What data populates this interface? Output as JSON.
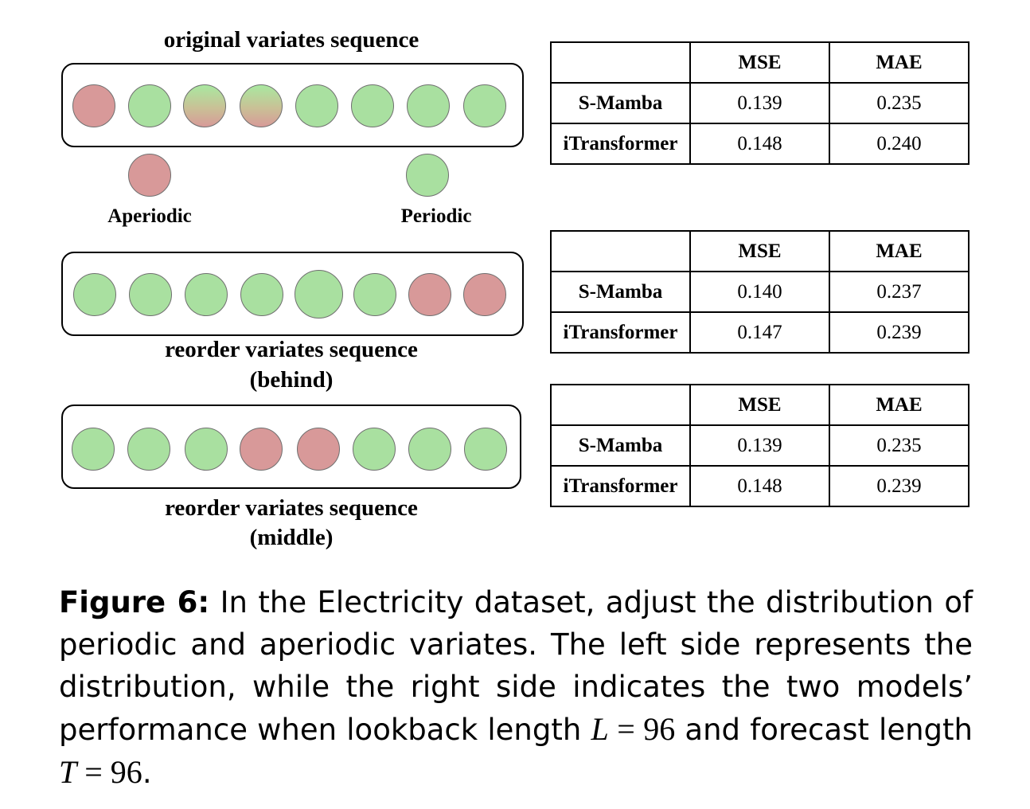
{
  "diagram": {
    "original_title": "original variates sequence",
    "aperiodic_label": "Aperiodic",
    "periodic_label": "Periodic",
    "behind_title_line1": "reorder variates sequence",
    "behind_title_line2": "(behind)",
    "middle_title_line1": "reorder variates sequence",
    "middle_title_line2": "(middle)",
    "original_sequence": [
      "aperiodic",
      "periodic",
      "mixed",
      "mixed",
      "periodic",
      "periodic",
      "periodic",
      "periodic"
    ],
    "behind_sequence": [
      "periodic",
      "periodic",
      "periodic",
      "periodic",
      "periodic",
      "periodic",
      "aperiodic",
      "aperiodic"
    ],
    "middle_sequence": [
      "periodic",
      "periodic",
      "periodic",
      "aperiodic",
      "aperiodic",
      "periodic",
      "periodic",
      "periodic"
    ],
    "colors": {
      "periodic": "#a9e0a0",
      "aperiodic": "#d89999"
    }
  },
  "tables": [
    {
      "headers": [
        "",
        "MSE",
        "MAE"
      ],
      "rows": [
        {
          "model": "S-Mamba",
          "mse": "0.139",
          "mae": "0.235"
        },
        {
          "model": "iTransformer",
          "mse": "0.148",
          "mae": "0.240"
        }
      ]
    },
    {
      "headers": [
        "",
        "MSE",
        "MAE"
      ],
      "rows": [
        {
          "model": "S-Mamba",
          "mse": "0.140",
          "mae": "0.237"
        },
        {
          "model": "iTransformer",
          "mse": "0.147",
          "mae": "0.239"
        }
      ]
    },
    {
      "headers": [
        "",
        "MSE",
        "MAE"
      ],
      "rows": [
        {
          "model": "S-Mamba",
          "mse": "0.139",
          "mae": "0.235"
        },
        {
          "model": "iTransformer",
          "mse": "0.148",
          "mae": "0.239"
        }
      ]
    }
  ],
  "caption": {
    "figure_label": "Figure 6:",
    "text_1": " In the Electricity dataset, adjust the distribution of periodic and aperiodic variates. The left side represents the distribution, while the right side indicates the two models’ performance when lookback length ",
    "var_L": "L",
    "eq_L": " = 96",
    "text_2": " and forecast length ",
    "var_T": "T",
    "eq_T": " = 96",
    "text_end": "."
  }
}
